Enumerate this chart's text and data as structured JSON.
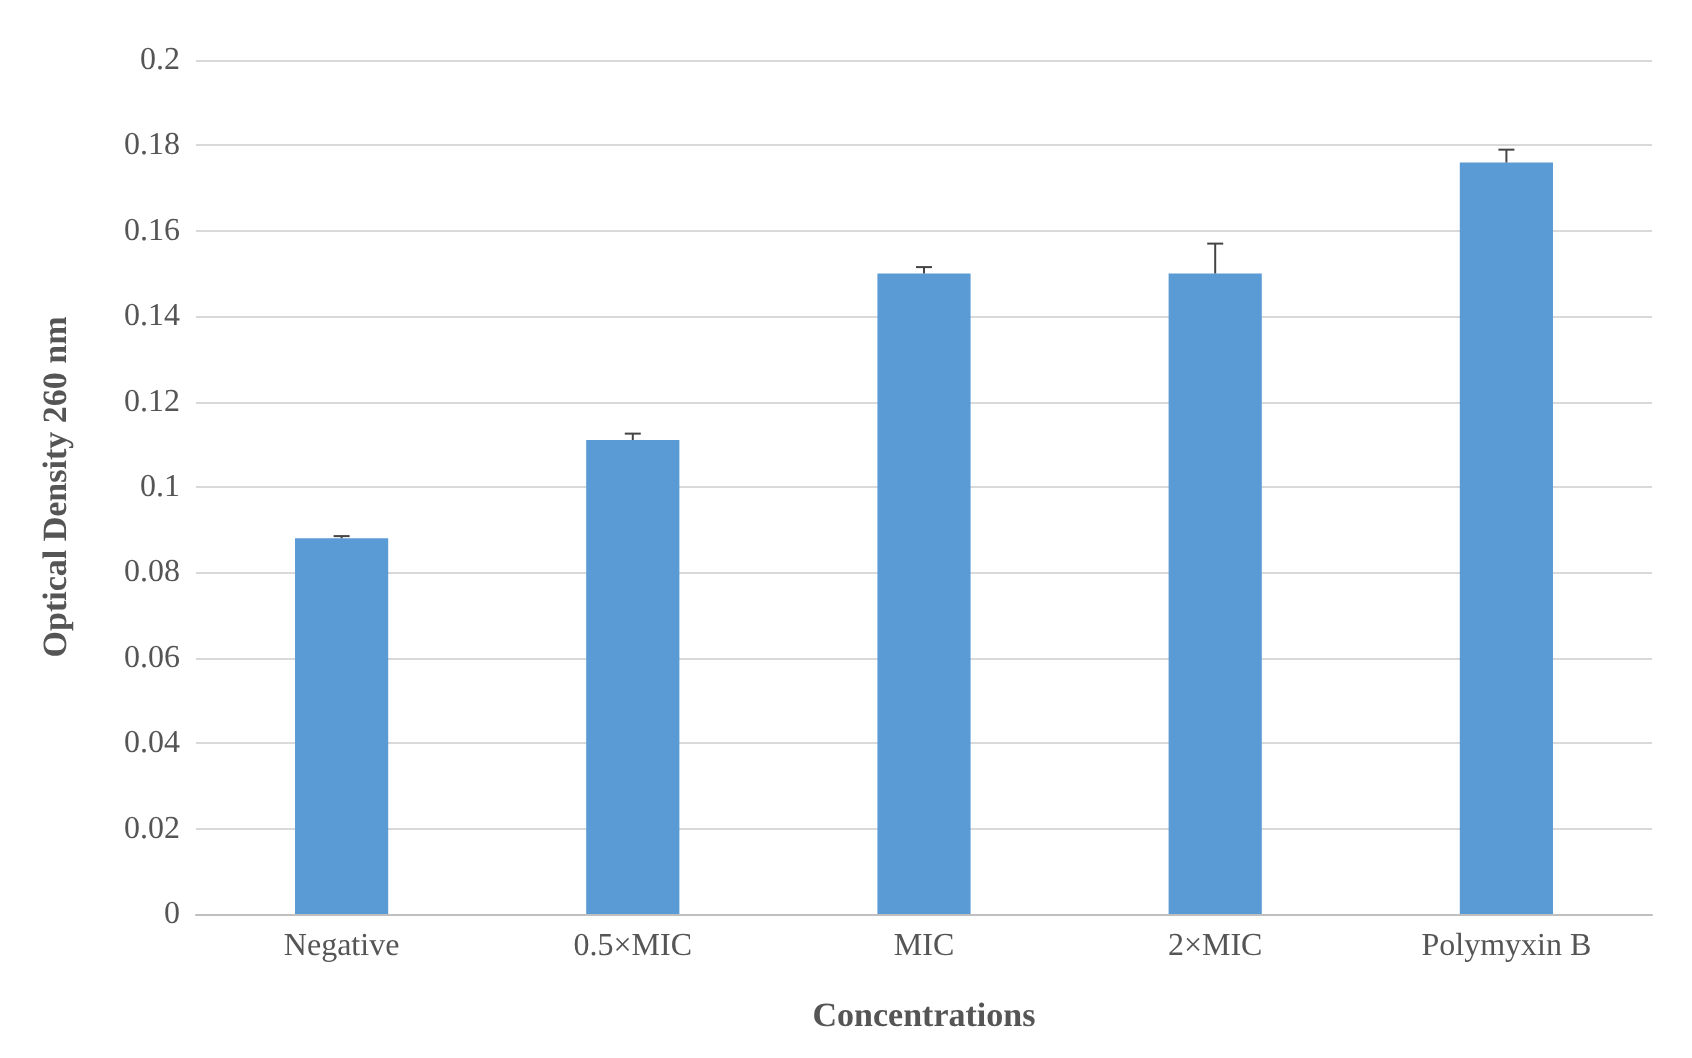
{
  "chart_data": {
    "type": "bar",
    "xlabel": "Concentrations",
    "ylabel": "Optical Density 260 nm",
    "categories": [
      "Negative",
      "0.5×MIC",
      "MIC",
      "2×MIC",
      "Polymyxin B"
    ],
    "values": [
      0.088,
      0.111,
      0.15,
      0.15,
      0.176
    ],
    "errors": [
      [
        0.088,
        0.0885
      ],
      [
        0.111,
        0.1125
      ],
      [
        0.15,
        0.1515
      ],
      [
        0.15,
        0.157
      ],
      [
        0.176,
        0.179
      ]
    ],
    "color": "#5b9bd5",
    "ylim": [
      0,
      0.2
    ],
    "yticks": [
      0,
      0.02,
      0.04,
      0.06,
      0.08,
      0.1,
      0.12,
      0.14,
      0.16,
      0.18,
      0.2
    ],
    "grid": "y"
  }
}
